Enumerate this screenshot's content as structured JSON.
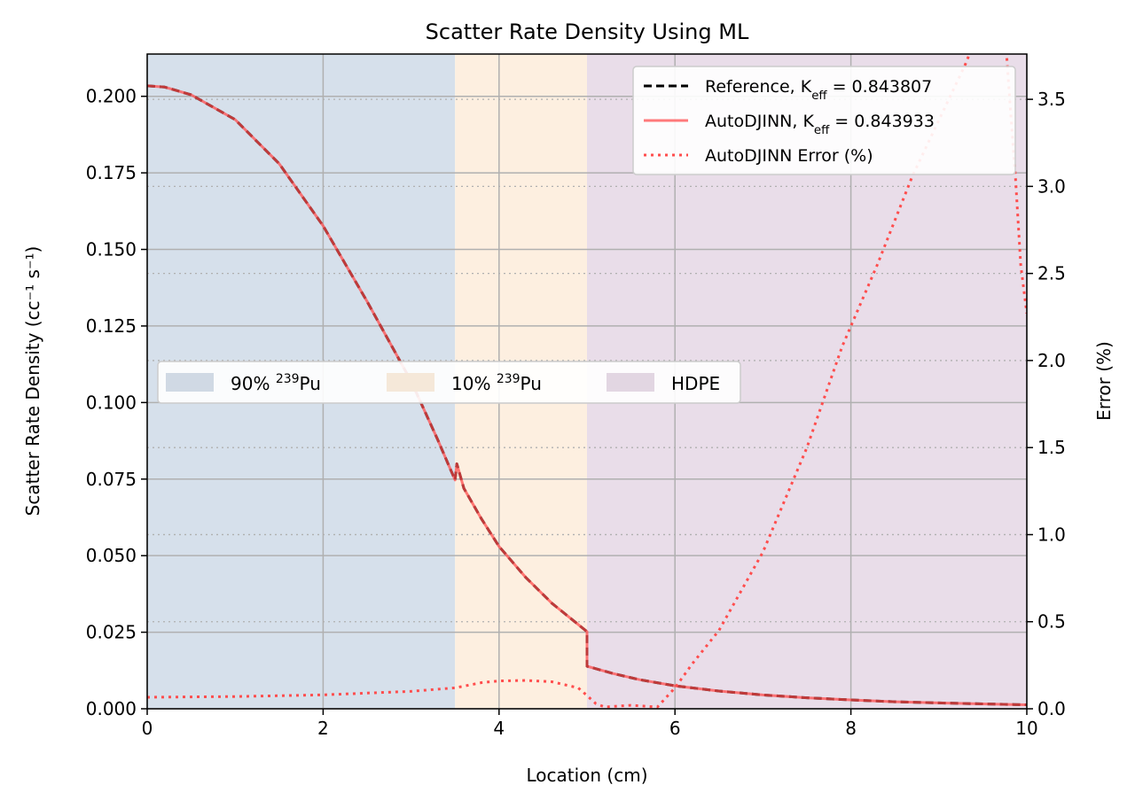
{
  "chart_data": {
    "type": "line",
    "title": "Scatter Rate Density Using ML",
    "xlabel": "Location (cm)",
    "ylabel": "Scatter Rate Density (cc⁻¹ s⁻¹)",
    "ylabel_right": "Error (%)",
    "xlim": [
      0,
      10
    ],
    "ylim": [
      0,
      0.2138
    ],
    "ylim_right": [
      0,
      3.76
    ],
    "xticks": [
      "0",
      "2",
      "4",
      "6",
      "8",
      "10"
    ],
    "yticks": [
      "0.000",
      "0.025",
      "0.050",
      "0.075",
      "0.100",
      "0.125",
      "0.150",
      "0.175",
      "0.200"
    ],
    "yticks_right": [
      "0.0",
      "0.5",
      "1.0",
      "1.5",
      "2.0",
      "2.5",
      "3.0",
      "3.5"
    ],
    "grid": true,
    "regions": [
      {
        "name": "90% ²³⁹Pu",
        "label_main": "90% ",
        "label_sup": "239",
        "label_tail": "Pu",
        "from": 0,
        "to": 3.5,
        "color": "#d6e0eb"
      },
      {
        "name": "10% ²³⁹Pu",
        "label_main": "10% ",
        "label_sup": "239",
        "label_tail": "Pu",
        "from": 3.5,
        "to": 5.0,
        "color": "#fdefe0"
      },
      {
        "name": "HDPE",
        "label_main": "HDPE",
        "label_sup": "",
        "label_tail": "",
        "from": 5.0,
        "to": 10,
        "color": "#e9dde9"
      }
    ],
    "region_legend_placement": "center-left",
    "series_legend_placement": "top-right",
    "series": [
      {
        "name": "Reference, Keff = 0.843807",
        "label_main": "Reference, K",
        "label_sub": "eff",
        "label_tail": " = 0.843807",
        "axis": "left",
        "style": "dashed",
        "color": "#000000",
        "x": [
          0,
          0.2,
          0.5,
          1.0,
          1.5,
          2.0,
          2.5,
          3.0,
          3.3,
          3.5,
          3.52,
          3.6,
          3.8,
          4.0,
          4.3,
          4.6,
          5.0,
          5.0,
          5.3,
          5.6,
          6.0,
          6.5,
          7.0,
          7.5,
          8.0,
          8.5,
          9.0,
          9.5,
          10.0
        ],
        "y": [
          0.2034,
          0.203,
          0.2005,
          0.1924,
          0.178,
          0.1577,
          0.133,
          0.107,
          0.088,
          0.0747,
          0.08,
          0.072,
          0.062,
          0.053,
          0.043,
          0.0345,
          0.0252,
          0.0139,
          0.0115,
          0.0095,
          0.0075,
          0.0058,
          0.0045,
          0.0036,
          0.0029,
          0.0023,
          0.0019,
          0.0016,
          0.0013
        ]
      },
      {
        "name": "AutoDJINN, Keff = 0.843933",
        "label_main": "AutoDJINN, K",
        "label_sub": "eff",
        "label_tail": " = 0.843933",
        "axis": "left",
        "style": "solid",
        "color": "#ff4d4d",
        "x": [
          0,
          0.2,
          0.5,
          1.0,
          1.5,
          2.0,
          2.5,
          3.0,
          3.3,
          3.5,
          3.52,
          3.6,
          3.8,
          4.0,
          4.3,
          4.6,
          5.0,
          5.0,
          5.3,
          5.6,
          6.0,
          6.5,
          7.0,
          7.5,
          8.0,
          8.5,
          9.0,
          9.5,
          10.0
        ],
        "y": [
          0.2034,
          0.203,
          0.2005,
          0.1924,
          0.178,
          0.1577,
          0.133,
          0.107,
          0.088,
          0.0747,
          0.08,
          0.072,
          0.062,
          0.053,
          0.043,
          0.0345,
          0.0252,
          0.0139,
          0.0115,
          0.0095,
          0.0075,
          0.0058,
          0.0045,
          0.0036,
          0.0029,
          0.0023,
          0.0019,
          0.0016,
          0.0013
        ]
      },
      {
        "name": "AutoDJINN Error (%)",
        "label_main": "AutoDJINN Error (%)",
        "label_sub": "",
        "label_tail": "",
        "axis": "right",
        "style": "dotted",
        "color": "#ff4d4d",
        "x": [
          0,
          1.0,
          2.0,
          3.0,
          3.5,
          3.8,
          4.0,
          4.3,
          4.6,
          4.9,
          5.0,
          5.1,
          5.2,
          5.5,
          5.8,
          6.0,
          6.2,
          6.5,
          7.0,
          7.5,
          7.9,
          8.3,
          8.7,
          9.0,
          9.3,
          9.5,
          9.65,
          9.75,
          9.82,
          9.87,
          9.93,
          10.0
        ],
        "y": [
          0.066,
          0.07,
          0.08,
          0.1,
          0.12,
          0.15,
          0.16,
          0.163,
          0.155,
          0.12,
          0.076,
          0.03,
          0.01,
          0.02,
          0.01,
          0.12,
          0.26,
          0.45,
          0.9,
          1.5,
          2.08,
          2.55,
          3.06,
          3.38,
          3.7,
          3.95,
          4.1,
          3.9,
          3.4,
          3.06,
          2.55,
          2.27
        ]
      }
    ]
  }
}
